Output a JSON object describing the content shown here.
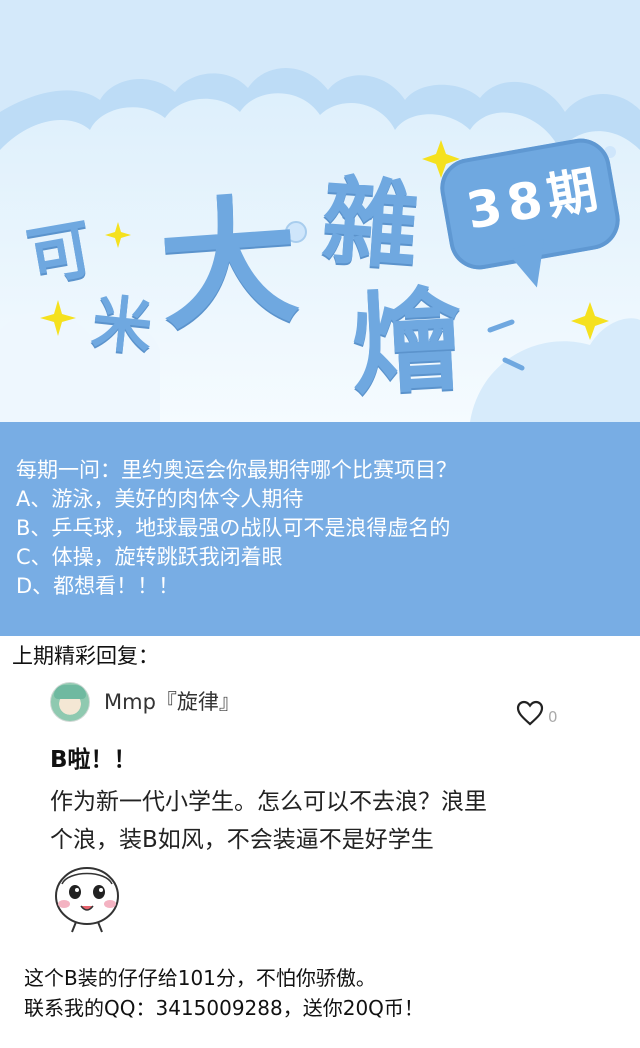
{
  "header": {
    "title_chars": [
      "可",
      "米",
      "大",
      "雜",
      "燴"
    ],
    "issue": "38期",
    "colors": {
      "title": "#6fa8e0",
      "sky": "#d7ecfb",
      "cloud": "#bddcf6",
      "star": "#f5e11e"
    }
  },
  "question": {
    "lines": [
      "每期一问：里约奥运会你最期待哪个比赛项目？",
      "A、游泳，美好的肉体令人期待",
      "B、乒乓球，地球最强の战队可不是浪得虚名的",
      "C、体操，旋转跳跃我闭着眼",
      "D、都想看！！！"
    ],
    "background": "#78ade4"
  },
  "last_issue": {
    "heading": "上期精彩回复："
  },
  "comment": {
    "username": "Mmp『旋律』",
    "like_count": "0",
    "title": "B啦！！",
    "lines": [
      "作为新一代小学生。怎么可以不去浪？浪里",
      "个浪，装B如风，不会装逼不是好学生"
    ],
    "icons": {
      "like": "heart-outline-icon",
      "sticker": "smiling-face-sticker-icon"
    }
  },
  "footer": {
    "lines": [
      "这个B装的仔仔给101分，不怕你骄傲。",
      "联系我的QQ：3415009288，送你20Q币！"
    ]
  }
}
